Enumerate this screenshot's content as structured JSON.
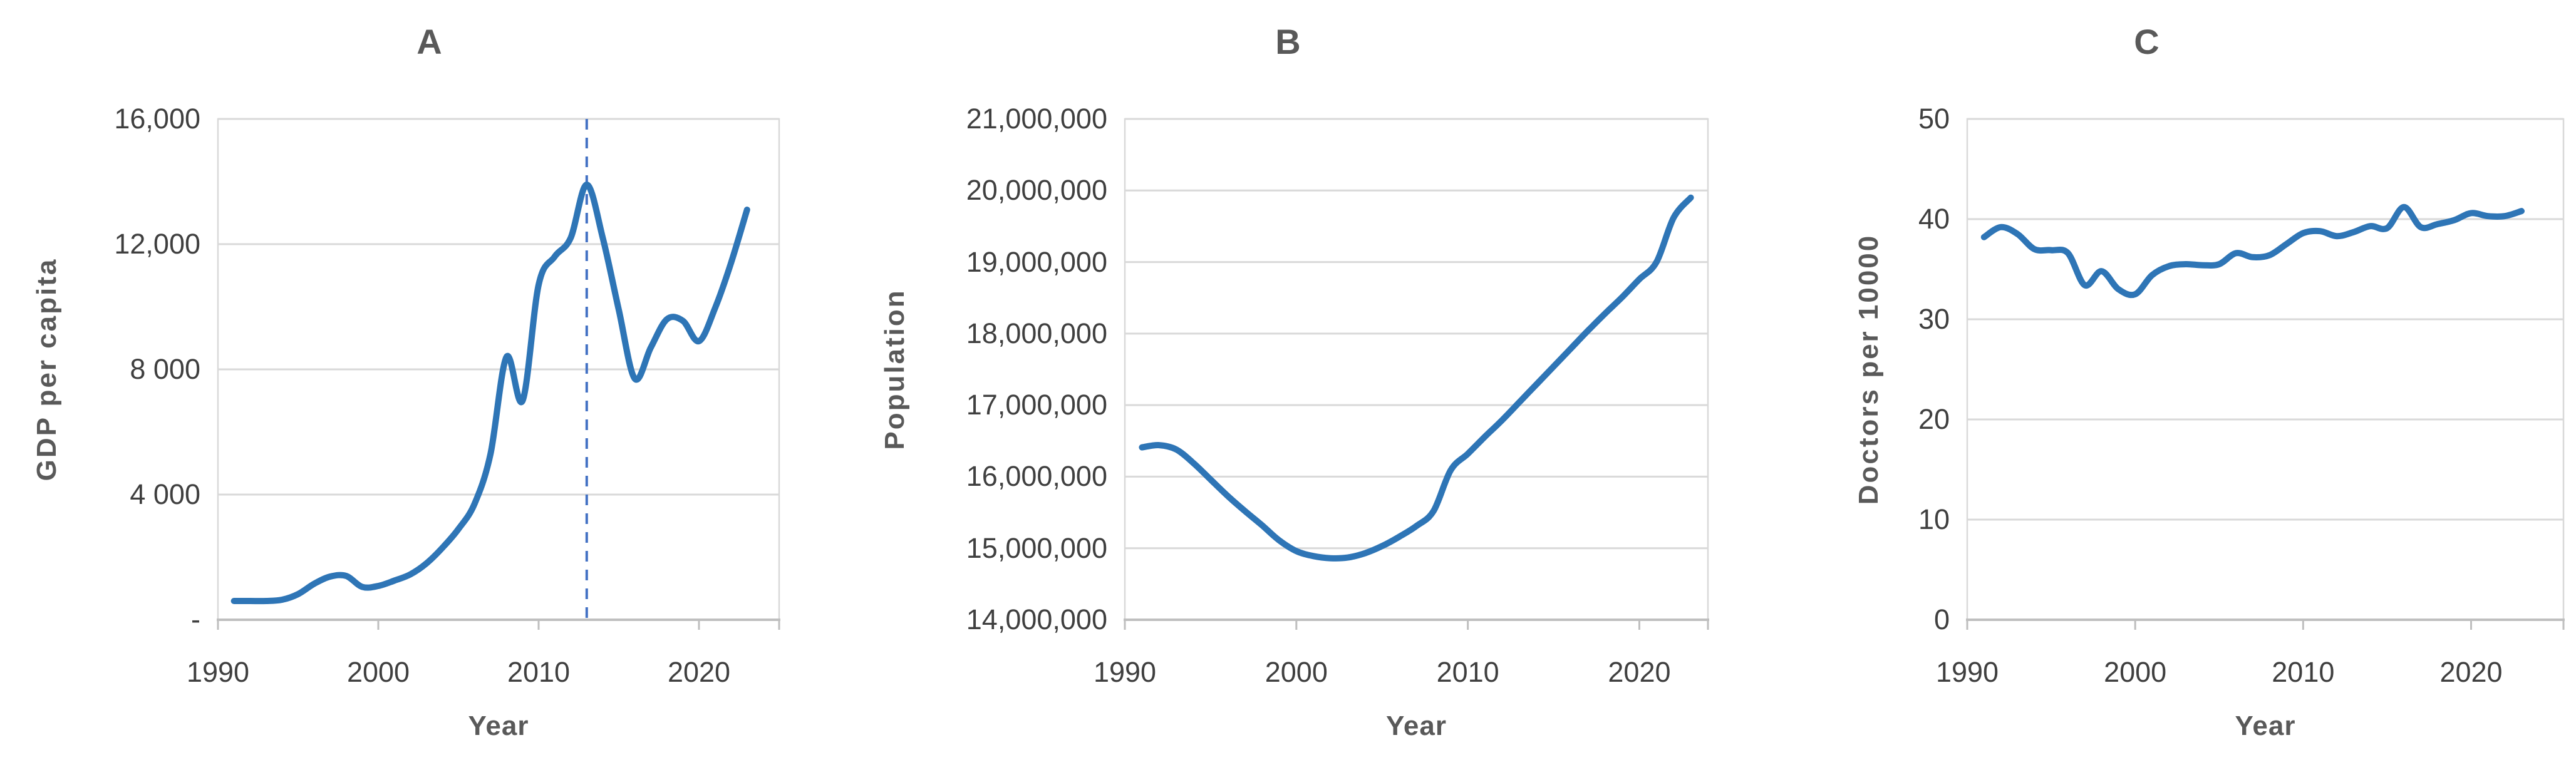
{
  "figure": {
    "background": "#ffffff",
    "title_color": "#595959",
    "tick_text_color": "#3f3f3f",
    "grid_color": "#d9d9d9",
    "axis_color": "#bfbfbf",
    "line_color": "#2e75b6",
    "dashed_line_color": "#4472c4"
  },
  "chart_data": [
    {
      "type": "line",
      "title": "A",
      "xlabel": "Year",
      "ylabel": "GDP per capita",
      "legend": "none",
      "grid": true,
      "line_color": "#2e75b6",
      "xlim": [
        1990,
        2025
      ],
      "ylim": [
        0,
        16000
      ],
      "x_tick_labels": [
        "1990",
        "2000",
        "2010",
        "2020"
      ],
      "x_tick_values": [
        1990,
        2000,
        2010,
        2020
      ],
      "y_tick_labels": [
        "16,000",
        "12,000",
        "8 000",
        "4 000",
        "-"
      ],
      "y_tick_values": [
        16000,
        12000,
        8000,
        4000,
        0
      ],
      "annotations": [
        {
          "type": "vline",
          "x": 2013,
          "style": "dashed",
          "color": "#4472c4"
        }
      ],
      "x": [
        1991,
        1992,
        1993,
        1994,
        1995,
        1996,
        1997,
        1998,
        1999,
        2000,
        2001,
        2002,
        2003,
        2004,
        2005,
        2006,
        2007,
        2008,
        2009,
        2010,
        2011,
        2012,
        2013,
        2014,
        2015,
        2016,
        2017,
        2018,
        2019,
        2020,
        2021,
        2022,
        2023
      ],
      "y": [
        600,
        600,
        600,
        640,
        820,
        1150,
        1380,
        1400,
        1050,
        1080,
        1250,
        1450,
        1800,
        2300,
        2900,
        3700,
        5300,
        8400,
        7000,
        10700,
        11600,
        12200,
        13900,
        12200,
        9900,
        7700,
        8700,
        9600,
        9550,
        8900,
        9950,
        11400,
        13100
      ]
    },
    {
      "type": "line",
      "title": "B",
      "xlabel": "Year",
      "ylabel": "Population",
      "legend": "none",
      "grid": true,
      "line_color": "#2e75b6",
      "xlim": [
        1990,
        2024
      ],
      "ylim": [
        14000000,
        21000000
      ],
      "x_tick_labels": [
        "1990",
        "2000",
        "2010",
        "2020"
      ],
      "x_tick_values": [
        1990,
        2000,
        2010,
        2020
      ],
      "y_tick_labels": [
        "21,000,000",
        "20,000,000",
        "19,000,000",
        "18,000,000",
        "17,000,000",
        "16,000,000",
        "15,000,000",
        "14,000,000"
      ],
      "y_tick_values": [
        21000000,
        20000000,
        19000000,
        18000000,
        17000000,
        16000000,
        15000000,
        14000000
      ],
      "annotations": [],
      "x": [
        1991,
        1992,
        1993,
        1994,
        1995,
        1996,
        1997,
        1998,
        1999,
        2000,
        2001,
        2002,
        2003,
        2004,
        2005,
        2006,
        2007,
        2008,
        2009,
        2010,
        2011,
        2012,
        2013,
        2014,
        2015,
        2016,
        2017,
        2018,
        2019,
        2020,
        2021,
        2022,
        2023
      ],
      "y": [
        16410000,
        16440000,
        16380000,
        16190000,
        15960000,
        15730000,
        15520000,
        15320000,
        15110000,
        14960000,
        14890000,
        14860000,
        14870000,
        14930000,
        15030000,
        15160000,
        15310000,
        15520000,
        16090000,
        16320000,
        16560000,
        16790000,
        17040000,
        17290000,
        17540000,
        17790000,
        18040000,
        18280000,
        18510000,
        18760000,
        19000000,
        19620000,
        19900000
      ]
    },
    {
      "type": "line",
      "title": "C",
      "xlabel": "Year",
      "ylabel": "Doctors per 10000",
      "legend": "none",
      "grid": true,
      "line_color": "#2e75b6",
      "xlim": [
        1990,
        2025.5
      ],
      "ylim": [
        0,
        50
      ],
      "x_tick_labels": [
        "1990",
        "2000",
        "2010",
        "2020"
      ],
      "x_tick_values": [
        1990,
        2000,
        2010,
        2020
      ],
      "y_tick_labels": [
        "50",
        "40",
        "30",
        "20",
        "10",
        "0"
      ],
      "y_tick_values": [
        50,
        40,
        30,
        20,
        10,
        0
      ],
      "annotations": [],
      "x": [
        1991,
        1992,
        1993,
        1994,
        1995,
        1996,
        1997,
        1998,
        1999,
        2000,
        2001,
        2002,
        2003,
        2004,
        2005,
        2006,
        2007,
        2008,
        2009,
        2010,
        2011,
        2012,
        2013,
        2014,
        2015,
        2016,
        2017,
        2018,
        2019,
        2020,
        2021,
        2022,
        2023
      ],
      "y": [
        38.2,
        39.2,
        38.5,
        37.0,
        36.9,
        36.6,
        33.4,
        34.8,
        33.0,
        32.5,
        34.4,
        35.3,
        35.5,
        35.4,
        35.5,
        36.6,
        36.2,
        36.4,
        37.5,
        38.6,
        38.8,
        38.3,
        38.7,
        39.3,
        39.1,
        41.2,
        39.2,
        39.5,
        39.9,
        40.6,
        40.3,
        40.3,
        40.8
      ]
    }
  ]
}
